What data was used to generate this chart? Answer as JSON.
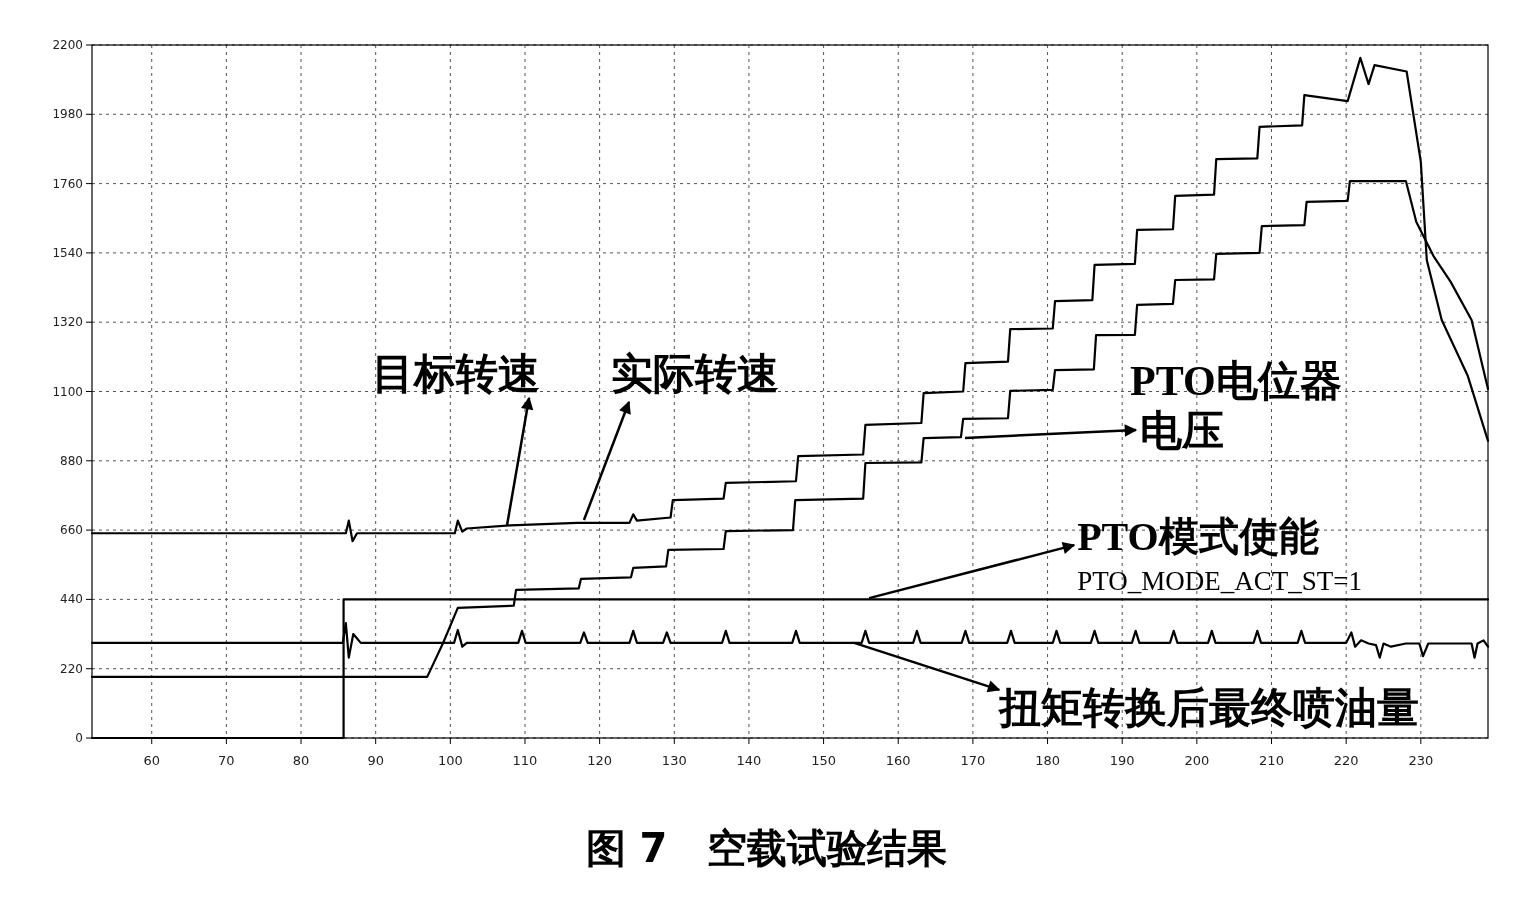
{
  "chart_data": {
    "type": "line",
    "title": "图 7　空载试验结果",
    "xlim": [
      52,
      239
    ],
    "xticks": [
      60,
      70,
      80,
      90,
      100,
      110,
      120,
      130,
      140,
      150,
      160,
      170,
      180,
      190,
      200,
      210,
      220,
      230
    ],
    "ylim": [
      0,
      2200
    ],
    "yticks": [
      0,
      220,
      440,
      660,
      880,
      1100,
      1320,
      1540,
      1760,
      1980,
      2200
    ],
    "grid": true,
    "marker": "none",
    "line_style": "solid",
    "series": [
      {
        "color": "#000000",
        "x": [
          52,
          86,
          86.4,
          86.9,
          87.5,
          100.6,
          101,
          101.6,
          102.2,
          108,
          117,
          124,
          124.5,
          125,
          129.5,
          129.8,
          136.6,
          136.9,
          146.3,
          146.6,
          155.3,
          155.6,
          163.1,
          163.4,
          168.7,
          169,
          174.7,
          175,
          180.7,
          181,
          186,
          186.3,
          191.7,
          192,
          196.8,
          197.1,
          202.3,
          202.6,
          208.1,
          208.4,
          214.1,
          214.4,
          220.2,
          221.9,
          223,
          223.8,
          228.1,
          230,
          230.8,
          232.8,
          236.3,
          239
        ],
        "values": [
          650,
          650,
          690,
          625,
          650,
          650,
          690,
          655,
          665,
          675,
          683,
          683,
          710,
          690,
          700,
          755,
          760,
          810,
          815,
          895,
          900,
          994,
          1000,
          1095,
          1100,
          1190,
          1195,
          1298,
          1300,
          1387,
          1390,
          1502,
          1505,
          1613,
          1615,
          1721,
          1725,
          1838,
          1840,
          1940,
          1945,
          2041,
          2022,
          2159,
          2076,
          2136,
          2116,
          1829,
          1517,
          1327,
          1149,
          943
        ]
      },
      {
        "color": "#000000",
        "x": [
          52,
          96.9,
          99,
          101,
          108.5,
          108.8,
          117.2,
          117.5,
          124.2,
          124.5,
          128.9,
          129.2,
          136.6,
          136.9,
          145.9,
          146.2,
          155.3,
          155.6,
          163.1,
          163.4,
          168.4,
          168.7,
          174.7,
          175,
          180.7,
          181,
          186.2,
          186.5,
          191.7,
          192,
          196.8,
          197.1,
          202.3,
          202.6,
          208.4,
          208.7,
          214.4,
          214.7,
          220.2,
          220.5,
          228,
          229.4,
          231.7,
          234,
          236.8,
          239
        ],
        "values": [
          194,
          194,
          300,
          413,
          420,
          470,
          475,
          505,
          510,
          540,
          545,
          597,
          600,
          657,
          660,
          755,
          760,
          873,
          875,
          952,
          955,
          1013,
          1015,
          1102,
          1105,
          1168,
          1170,
          1279,
          1280,
          1375,
          1378,
          1454,
          1456,
          1537,
          1540,
          1625,
          1628,
          1702,
          1705,
          1768,
          1768,
          1638,
          1530,
          1448,
          1327,
          1108
        ]
      },
      {
        "color": "#000000",
        "x": [
          52,
          85.7,
          85.7,
          239
        ],
        "values": [
          0,
          0,
          440,
          440
        ]
      },
      {
        "color": "#000000",
        "x": [
          52,
          85.6,
          86,
          86.4,
          87,
          88,
          100.5,
          101,
          101.6,
          102.2,
          109.1,
          109.6,
          110.1,
          117.4,
          117.9,
          118.4,
          124,
          124.5,
          125,
          128.5,
          129,
          129.5,
          136.4,
          136.9,
          137.4,
          145.8,
          146.3,
          146.8,
          155.1,
          155.6,
          156.1,
          162,
          162.5,
          163,
          168.5,
          169,
          169.5,
          174.6,
          175.1,
          175.6,
          180.7,
          181.2,
          181.7,
          185.8,
          186.3,
          186.8,
          191.3,
          191.8,
          192.3,
          196.4,
          196.9,
          197.4,
          201.5,
          202,
          202.5,
          207.6,
          208.1,
          208.6,
          213.5,
          214,
          214.5,
          220,
          220.7,
          221.2,
          222,
          223,
          224,
          224.5,
          225,
          226,
          228,
          229.8,
          230.3,
          231,
          236.8,
          237.2,
          237.6,
          238.4,
          239
        ],
        "values": [
          302,
          302,
          365,
          255,
          330,
          302,
          302,
          343,
          290,
          302,
          302,
          340,
          302,
          302,
          335,
          302,
          302,
          340,
          302,
          302,
          335,
          302,
          302,
          340,
          302,
          302,
          340,
          302,
          302,
          340,
          302,
          302,
          340,
          302,
          302,
          340,
          302,
          302,
          340,
          302,
          302,
          340,
          302,
          302,
          340,
          302,
          302,
          340,
          302,
          302,
          340,
          302,
          302,
          340,
          302,
          302,
          340,
          302,
          302,
          340,
          302,
          302,
          335,
          290,
          310,
          300,
          295,
          255,
          300,
          290,
          300,
          300,
          260,
          300,
          300,
          255,
          300,
          310,
          290
        ]
      }
    ],
    "annotations": [
      {
        "text": "目标转速",
        "x": 107.6,
        "y": 676
      },
      {
        "text": "实际转速",
        "x": 117.9,
        "y": 692
      },
      "PTO电位器",
      "电压",
      {
        "text": "PTO模式使能\nPTO_MODE_ACT_ST=1",
        "x": 156.1,
        "y": 444
      },
      {
        "text": "扭矩转换后最终喷油量",
        "x": 154.1,
        "y": 302
      }
    ]
  }
}
